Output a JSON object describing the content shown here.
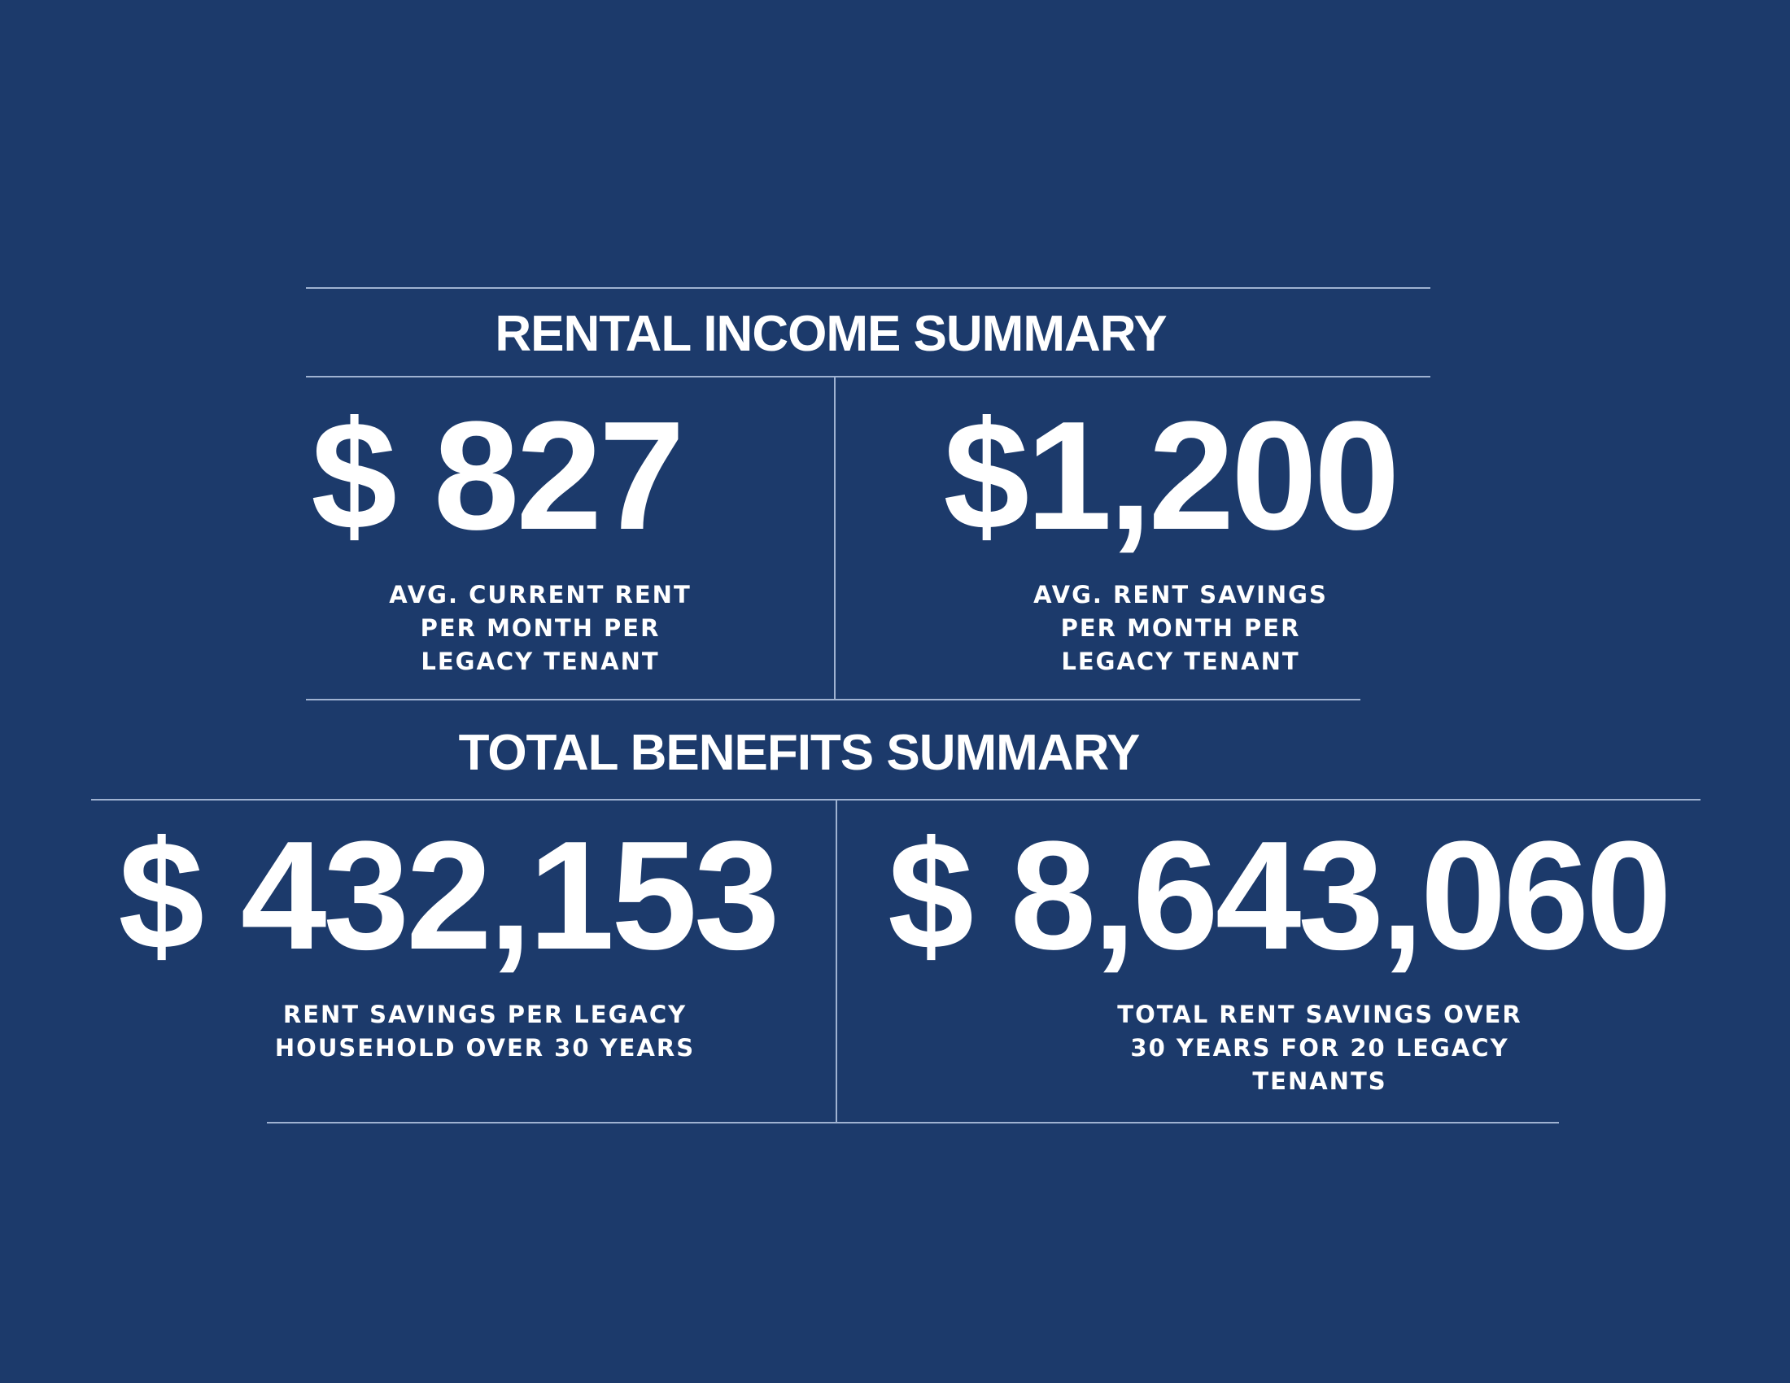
{
  "sections": [
    {
      "title": "RENTAL INCOME SUMMARY",
      "stats": [
        {
          "value": "$ 827",
          "label": [
            "AVG. CURRENT RENT",
            "PER MONTH PER",
            "LEGACY TENANT"
          ]
        },
        {
          "value": "$1,200",
          "label": [
            "AVG. RENT SAVINGS",
            "PER MONTH PER",
            "LEGACY TENANT"
          ]
        }
      ]
    },
    {
      "title": "TOTAL BENEFITS SUMMARY",
      "stats": [
        {
          "value": "$ 432,153",
          "label": [
            "RENT SAVINGS PER LEGACY",
            "HOUSEHOLD OVER 30 YEARS"
          ]
        },
        {
          "value": "$ 8,643,060",
          "label": [
            "TOTAL RENT SAVINGS OVER",
            "30 YEARS FOR 20 LEGACY",
            "TENANTS"
          ]
        }
      ]
    }
  ]
}
